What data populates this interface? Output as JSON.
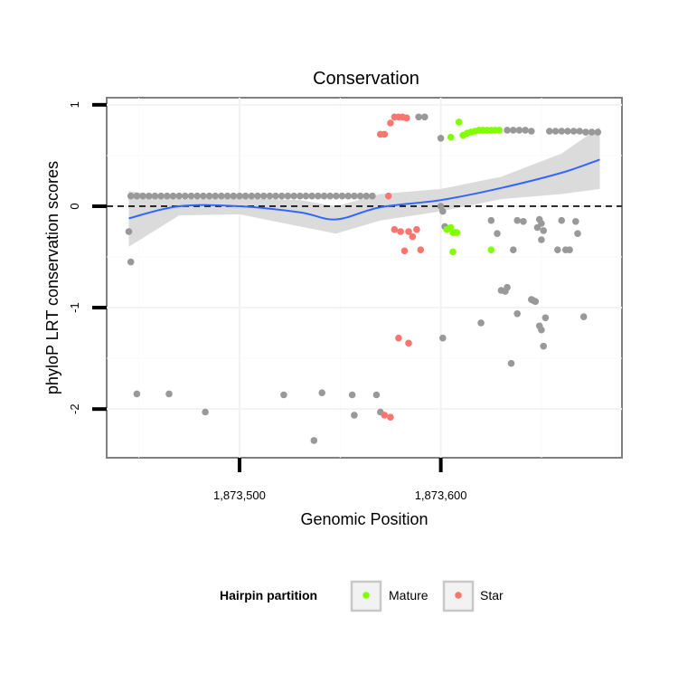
{
  "chart_data": {
    "type": "scatter",
    "title": "Conservation",
    "xlabel": "Genomic Position",
    "ylabel": "phyloP LRT conservation scores",
    "xlim": [
      1873434,
      1873690
    ],
    "ylim": [
      -2.48,
      1.07
    ],
    "x_ticks": [
      {
        "value": 1873500,
        "label": "1,873,500"
      },
      {
        "value": 1873600,
        "label": "1,873,600"
      }
    ],
    "y_ticks": [
      {
        "value": 1,
        "label": "1"
      },
      {
        "value": 0,
        "label": "0"
      },
      {
        "value": -1,
        "label": "-1"
      },
      {
        "value": -2,
        "label": "-2"
      }
    ],
    "reference_line": {
      "y": 0,
      "style": "dashed"
    },
    "legend": {
      "title": "Hairpin partition",
      "position": "bottom",
      "entries": [
        {
          "name": "Mature",
          "color": "#7FFF00"
        },
        {
          "name": "Star",
          "color": "#F8766D"
        }
      ]
    },
    "colors": {
      "other": "#999999",
      "Mature": "#7FFF00",
      "Star": "#F8766D",
      "smooth": "#3366FF",
      "ribbon": "#D9D9D9"
    },
    "smooth_line": {
      "x": [
        1873445,
        1873470,
        1873500,
        1873530,
        1873548,
        1873570,
        1873600,
        1873630,
        1873660,
        1873679
      ],
      "y": [
        -0.12,
        0.0,
        0.0,
        -0.06,
        -0.13,
        -0.01,
        0.06,
        0.18,
        0.33,
        0.46
      ]
    },
    "ribbon": {
      "x": [
        1873445,
        1873470,
        1873500,
        1873530,
        1873548,
        1873570,
        1873600,
        1873630,
        1873660,
        1873679
      ],
      "upper": [
        0.15,
        0.07,
        0.08,
        0.06,
        0.0,
        0.12,
        0.17,
        0.29,
        0.52,
        0.78
      ],
      "lower": [
        -0.4,
        -0.09,
        -0.08,
        -0.2,
        -0.27,
        -0.14,
        -0.05,
        0.07,
        0.12,
        0.17
      ]
    },
    "series": [
      {
        "name": "other",
        "points": [
          [
            1873446,
            0.1
          ],
          [
            1873449,
            0.1
          ],
          [
            1873452,
            0.1
          ],
          [
            1873455,
            0.1
          ],
          [
            1873458,
            0.1
          ],
          [
            1873461,
            0.1
          ],
          [
            1873464,
            0.1
          ],
          [
            1873467,
            0.1
          ],
          [
            1873470,
            0.1
          ],
          [
            1873473,
            0.1
          ],
          [
            1873476,
            0.1
          ],
          [
            1873479,
            0.1
          ],
          [
            1873482,
            0.1
          ],
          [
            1873485,
            0.1
          ],
          [
            1873488,
            0.1
          ],
          [
            1873491,
            0.1
          ],
          [
            1873494,
            0.1
          ],
          [
            1873497,
            0.1
          ],
          [
            1873500,
            0.1
          ],
          [
            1873503,
            0.1
          ],
          [
            1873506,
            0.1
          ],
          [
            1873509,
            0.1
          ],
          [
            1873512,
            0.1
          ],
          [
            1873515,
            0.1
          ],
          [
            1873518,
            0.1
          ],
          [
            1873521,
            0.1
          ],
          [
            1873524,
            0.1
          ],
          [
            1873527,
            0.1
          ],
          [
            1873530,
            0.1
          ],
          [
            1873533,
            0.1
          ],
          [
            1873536,
            0.1
          ],
          [
            1873539,
            0.1
          ],
          [
            1873542,
            0.1
          ],
          [
            1873545,
            0.1
          ],
          [
            1873548,
            0.1
          ],
          [
            1873551,
            0.1
          ],
          [
            1873554,
            0.1
          ],
          [
            1873557,
            0.1
          ],
          [
            1873560,
            0.1
          ],
          [
            1873563,
            0.1
          ],
          [
            1873566,
            0.1
          ],
          [
            1873445,
            -0.25
          ],
          [
            1873446,
            -0.55
          ],
          [
            1873449,
            -1.85
          ],
          [
            1873465,
            -1.85
          ],
          [
            1873483,
            -2.03
          ],
          [
            1873522,
            -1.86
          ],
          [
            1873537,
            -2.31
          ],
          [
            1873541,
            -1.84
          ],
          [
            1873556,
            -1.86
          ],
          [
            1873557,
            -2.06
          ],
          [
            1873568,
            -1.86
          ],
          [
            1873570,
            -2.03
          ],
          [
            1873583,
            0.87
          ],
          [
            1873589,
            0.88
          ],
          [
            1873592,
            0.88
          ],
          [
            1873600,
            0.67
          ],
          [
            1873600,
            0.0
          ],
          [
            1873601,
            -0.05
          ],
          [
            1873602,
            -0.2
          ],
          [
            1873601,
            -1.3
          ],
          [
            1873638,
            -0.14
          ],
          [
            1873641,
            -0.15
          ],
          [
            1873649,
            -0.13
          ],
          [
            1873658,
            -0.43
          ],
          [
            1873660,
            -0.14
          ],
          [
            1873667,
            -0.15
          ],
          [
            1873668,
            -0.27
          ],
          [
            1873671,
            -1.09
          ],
          [
            1873625,
            -0.14
          ],
          [
            1873628,
            -0.27
          ],
          [
            1873636,
            -0.43
          ],
          [
            1873630,
            -0.83
          ],
          [
            1873632,
            -0.84
          ],
          [
            1873633,
            -0.8
          ],
          [
            1873638,
            -1.06
          ],
          [
            1873635,
            -1.55
          ],
          [
            1873650,
            -0.17
          ],
          [
            1873648,
            -0.21
          ],
          [
            1873651,
            -0.24
          ],
          [
            1873650,
            -0.33
          ],
          [
            1873662,
            -0.43
          ],
          [
            1873664,
            -0.43
          ],
          [
            1873645,
            -0.92
          ],
          [
            1873646,
            -0.93
          ],
          [
            1873647,
            -0.94
          ],
          [
            1873652,
            -1.1
          ],
          [
            1873649,
            -1.18
          ],
          [
            1873650,
            -1.22
          ],
          [
            1873651,
            -1.38
          ],
          [
            1873620,
            -1.15
          ],
          [
            1873633,
            0.75
          ],
          [
            1873636,
            0.75
          ],
          [
            1873639,
            0.75
          ],
          [
            1873642,
            0.75
          ],
          [
            1873645,
            0.74
          ],
          [
            1873654,
            0.74
          ],
          [
            1873657,
            0.74
          ],
          [
            1873660,
            0.74
          ],
          [
            1873663,
            0.74
          ],
          [
            1873666,
            0.74
          ],
          [
            1873669,
            0.74
          ],
          [
            1873672,
            0.73
          ],
          [
            1873675,
            0.73
          ],
          [
            1873678,
            0.73
          ]
        ]
      },
      {
        "name": "Mature",
        "points": [
          [
            1873609,
            0.83
          ],
          [
            1873605,
            0.68
          ],
          [
            1873611,
            0.7
          ],
          [
            1873613,
            0.72
          ],
          [
            1873615,
            0.73
          ],
          [
            1873617,
            0.74
          ],
          [
            1873619,
            0.75
          ],
          [
            1873621,
            0.75
          ],
          [
            1873623,
            0.75
          ],
          [
            1873625,
            0.75
          ],
          [
            1873627,
            0.75
          ],
          [
            1873629,
            0.75
          ],
          [
            1873603,
            -0.23
          ],
          [
            1873605,
            -0.21
          ],
          [
            1873606,
            -0.26
          ],
          [
            1873607,
            -0.26
          ],
          [
            1873608,
            -0.26
          ],
          [
            1873606,
            -0.45
          ],
          [
            1873625,
            -0.43
          ]
        ]
      },
      {
        "name": "Star",
        "points": [
          [
            1873570,
            0.71
          ],
          [
            1873572,
            0.71
          ],
          [
            1873575,
            0.82
          ],
          [
            1873577,
            0.88
          ],
          [
            1873579,
            0.88
          ],
          [
            1873581,
            0.88
          ],
          [
            1873583,
            0.87
          ],
          [
            1873574,
            0.1
          ],
          [
            1873577,
            -0.23
          ],
          [
            1873580,
            -0.25
          ],
          [
            1873582,
            -0.44
          ],
          [
            1873584,
            -0.25
          ],
          [
            1873586,
            -0.3
          ],
          [
            1873588,
            -0.23
          ],
          [
            1873590,
            -0.43
          ],
          [
            1873579,
            -1.3
          ],
          [
            1873584,
            -1.35
          ],
          [
            1873572,
            -2.06
          ],
          [
            1873575,
            -2.08
          ]
        ]
      }
    ]
  }
}
